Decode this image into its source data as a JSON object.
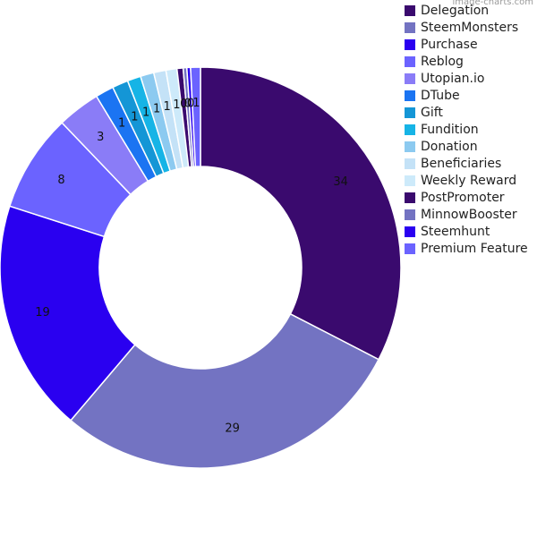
{
  "watermark": "image-charts.com",
  "chart_data": {
    "type": "pie",
    "donut": true,
    "legend_position": "top-right",
    "title": "",
    "categories": [
      "Delegation",
      "SteemMonsters",
      "Purchase",
      "Reblog",
      "Utopian.io",
      "DTube",
      "Gift",
      "Fundition",
      "Donation",
      "Beneficiaries",
      "Weekly Reward",
      "PostPromoter",
      "MinnowBooster",
      "Steemhunt",
      "Premium Feature"
    ],
    "values": [
      34,
      29,
      19,
      8,
      3,
      1,
      1,
      1,
      1,
      1,
      1,
      0,
      0,
      0,
      1
    ],
    "value_labels": [
      "34",
      "29",
      "19",
      "8",
      "3",
      "1",
      "1",
      "1",
      "1",
      "1",
      "1",
      "0",
      "0",
      "0",
      "1"
    ],
    "fractions": [
      0.33,
      0.29,
      0.19,
      0.08,
      0.035,
      0.015,
      0.013,
      0.011,
      0.011,
      0.01,
      0.009,
      0.005,
      0.003,
      0.003,
      0.008
    ],
    "colors": [
      "#3a0a6e",
      "#7373c2",
      "#2a00f0",
      "#6b63ff",
      "#8a7cf7",
      "#1b74f2",
      "#1496d6",
      "#16b4e6",
      "#8ccaf0",
      "#c4e2f7",
      "#cdeafa",
      "#3a0a6e",
      "#7373c2",
      "#2a00f0",
      "#6b63ff"
    ]
  }
}
